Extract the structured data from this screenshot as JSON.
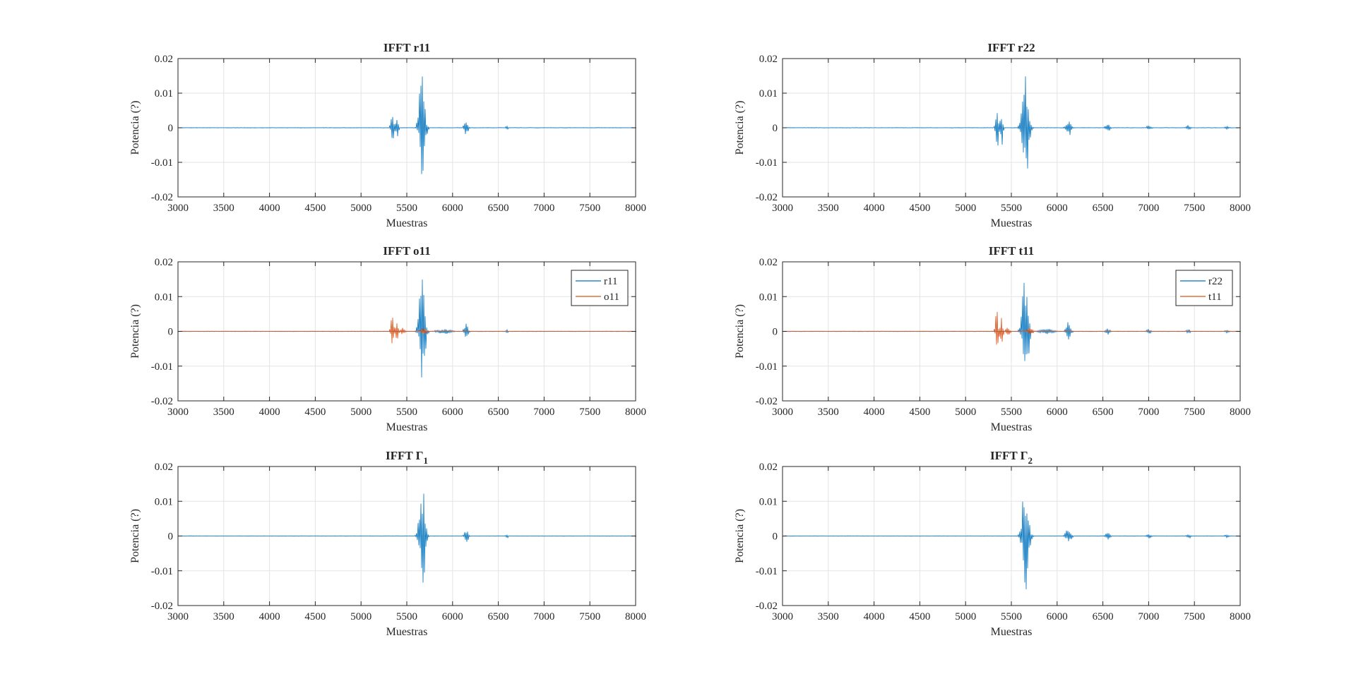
{
  "figure": {
    "window_title": ""
  },
  "colors": {
    "blue": "#0072BD",
    "orange": "#D95319",
    "grid": "#e3e3e3",
    "axis": "#262626"
  },
  "chart_data": [
    {
      "type": "line",
      "title": "IFFT r11",
      "xlabel": "Muestras",
      "ylabel": "Potencia (?)",
      "xlim": [
        3000,
        8000
      ],
      "ylim": [
        -0.02,
        0.02
      ],
      "xticks": [
        3000,
        3500,
        4000,
        4500,
        5000,
        5500,
        6000,
        6500,
        7000,
        7500,
        8000
      ],
      "yticks": [
        -0.02,
        -0.01,
        0,
        0.01,
        0.02
      ],
      "grid": true,
      "legend": null,
      "series": [
        {
          "color": "#0072BD",
          "bursts": [
            {
              "center": 5340,
              "width": 40,
              "max": 0.005,
              "min": -0.005
            },
            {
              "center": 5390,
              "width": 30,
              "max": 0.006,
              "min": -0.0055
            },
            {
              "center": 5665,
              "width": 80,
              "max": 0.0175,
              "min": -0.0148
            },
            {
              "center": 6145,
              "width": 50,
              "max": 0.0028,
              "min": -0.0025
            },
            {
              "center": 6590,
              "width": 30,
              "max": 0.0006,
              "min": -0.0006
            }
          ]
        }
      ]
    },
    {
      "type": "line",
      "title": "IFFT r22",
      "xlabel": "Muestras",
      "ylabel": "Potencia (?)",
      "xlim": [
        3000,
        8000
      ],
      "ylim": [
        -0.02,
        0.02
      ],
      "xticks": [
        3000,
        3500,
        4000,
        4500,
        5000,
        5500,
        6000,
        6500,
        7000,
        7500,
        8000
      ],
      "yticks": [
        -0.02,
        -0.01,
        0,
        0.01,
        0.02
      ],
      "grid": true,
      "legend": null,
      "series": [
        {
          "color": "#0072BD",
          "bursts": [
            {
              "center": 5340,
              "width": 40,
              "max": 0.0068,
              "min": -0.0072
            },
            {
              "center": 5390,
              "width": 30,
              "max": 0.0065,
              "min": -0.0065
            },
            {
              "center": 5650,
              "width": 90,
              "max": 0.0158,
              "min": -0.0155
            },
            {
              "center": 6120,
              "width": 70,
              "max": 0.0028,
              "min": -0.0025
            },
            {
              "center": 6550,
              "width": 60,
              "max": 0.0012,
              "min": -0.0012
            },
            {
              "center": 7000,
              "width": 60,
              "max": 0.0007,
              "min": -0.0007
            },
            {
              "center": 7430,
              "width": 50,
              "max": 0.0008,
              "min": -0.0008
            },
            {
              "center": 7850,
              "width": 50,
              "max": 0.0006,
              "min": -0.0006
            }
          ]
        }
      ]
    },
    {
      "type": "line",
      "title": "IFFT o11",
      "xlabel": "Muestras",
      "ylabel": "Potencia (?)",
      "xlim": [
        3000,
        8000
      ],
      "ylim": [
        -0.02,
        0.02
      ],
      "xticks": [
        3000,
        3500,
        4000,
        4500,
        5000,
        5500,
        6000,
        6500,
        7000,
        7500,
        8000
      ],
      "yticks": [
        -0.02,
        -0.01,
        0,
        0.01,
        0.02
      ],
      "grid": true,
      "legend": {
        "location": "top-right",
        "entries": [
          "r11",
          "o11"
        ]
      },
      "series": [
        {
          "name": "r11",
          "color": "#0072BD",
          "bursts": [
            {
              "center": 5665,
              "width": 80,
              "max": 0.0175,
              "min": -0.0148
            },
            {
              "center": 5900,
              "width": 200,
              "max": 0.0008,
              "min": -0.0008
            },
            {
              "center": 6145,
              "width": 50,
              "max": 0.0028,
              "min": -0.0025
            },
            {
              "center": 6590,
              "width": 30,
              "max": 0.0006,
              "min": -0.0006
            }
          ]
        },
        {
          "name": "o11",
          "color": "#D95319",
          "bursts": [
            {
              "center": 5340,
              "width": 40,
              "max": 0.005,
              "min": -0.0055
            },
            {
              "center": 5390,
              "width": 30,
              "max": 0.006,
              "min": -0.0058
            },
            {
              "center": 5450,
              "width": 60,
              "max": 0.0012,
              "min": -0.0012
            },
            {
              "center": 5680,
              "width": 80,
              "max": 0.001,
              "min": -0.001
            }
          ]
        }
      ]
    },
    {
      "type": "line",
      "title": "IFFT t11",
      "xlabel": "Muestras",
      "ylabel": "Potencia (?)",
      "xlim": [
        3000,
        8000
      ],
      "ylim": [
        -0.02,
        0.02
      ],
      "xticks": [
        3000,
        3500,
        4000,
        4500,
        5000,
        5500,
        6000,
        6500,
        7000,
        7500,
        8000
      ],
      "yticks": [
        -0.02,
        -0.01,
        0,
        0.01,
        0.02
      ],
      "grid": true,
      "legend": {
        "location": "top-right",
        "entries": [
          "r22",
          "t11"
        ]
      },
      "series": [
        {
          "name": "r22",
          "color": "#0072BD",
          "bursts": [
            {
              "center": 5650,
              "width": 90,
              "max": 0.0158,
              "min": -0.0155
            },
            {
              "center": 5880,
              "width": 200,
              "max": 0.0008,
              "min": -0.0008
            },
            {
              "center": 6120,
              "width": 70,
              "max": 0.0028,
              "min": -0.0025
            },
            {
              "center": 6550,
              "width": 60,
              "max": 0.0012,
              "min": -0.0012
            },
            {
              "center": 7000,
              "width": 60,
              "max": 0.0007,
              "min": -0.0007
            },
            {
              "center": 7430,
              "width": 50,
              "max": 0.0008,
              "min": -0.0008
            },
            {
              "center": 7850,
              "width": 50,
              "max": 0.0006,
              "min": -0.0006
            }
          ]
        },
        {
          "name": "t11",
          "color": "#D95319",
          "bursts": [
            {
              "center": 5340,
              "width": 40,
              "max": 0.0068,
              "min": -0.0068
            },
            {
              "center": 5390,
              "width": 30,
              "max": 0.0065,
              "min": -0.0062
            },
            {
              "center": 5460,
              "width": 60,
              "max": 0.0012,
              "min": -0.0012
            },
            {
              "center": 5700,
              "width": 80,
              "max": 0.0012,
              "min": -0.0012
            }
          ]
        }
      ]
    },
    {
      "type": "line",
      "title": "IFFT Γ",
      "title_subscript": "1",
      "xlabel": "Muestras",
      "ylabel": "Potencia (?)",
      "xlim": [
        3000,
        8000
      ],
      "ylim": [
        -0.02,
        0.02
      ],
      "xticks": [
        3000,
        3500,
        4000,
        4500,
        5000,
        5500,
        6000,
        6500,
        7000,
        7500,
        8000
      ],
      "yticks": [
        -0.02,
        -0.01,
        0,
        0.01,
        0.02
      ],
      "grid": true,
      "legend": null,
      "series": [
        {
          "color": "#0072BD",
          "bursts": [
            {
              "center": 5665,
              "width": 80,
              "max": 0.0172,
              "min": -0.0145
            },
            {
              "center": 6145,
              "width": 50,
              "max": 0.0028,
              "min": -0.0025
            },
            {
              "center": 6590,
              "width": 30,
              "max": 0.0006,
              "min": -0.0006
            }
          ]
        }
      ]
    },
    {
      "type": "line",
      "title": "IFFT Γ",
      "title_subscript": "2",
      "xlabel": "Muestras",
      "ylabel": "Potencia (?)",
      "xlim": [
        3000,
        8000
      ],
      "ylim": [
        -0.02,
        0.02
      ],
      "xticks": [
        3000,
        3500,
        4000,
        4500,
        5000,
        5500,
        6000,
        6500,
        7000,
        7500,
        8000
      ],
      "yticks": [
        -0.02,
        -0.01,
        0,
        0.01,
        0.02
      ],
      "grid": true,
      "legend": null,
      "series": [
        {
          "color": "#0072BD",
          "bursts": [
            {
              "center": 5650,
              "width": 90,
              "max": 0.0158,
              "min": -0.0155
            },
            {
              "center": 6120,
              "width": 70,
              "max": 0.0028,
              "min": -0.0025
            },
            {
              "center": 6550,
              "width": 60,
              "max": 0.0012,
              "min": -0.0012
            },
            {
              "center": 7000,
              "width": 60,
              "max": 0.0007,
              "min": -0.0007
            },
            {
              "center": 7430,
              "width": 50,
              "max": 0.0008,
              "min": -0.0008
            },
            {
              "center": 7850,
              "width": 50,
              "max": 0.0006,
              "min": -0.0006
            }
          ]
        }
      ]
    }
  ]
}
